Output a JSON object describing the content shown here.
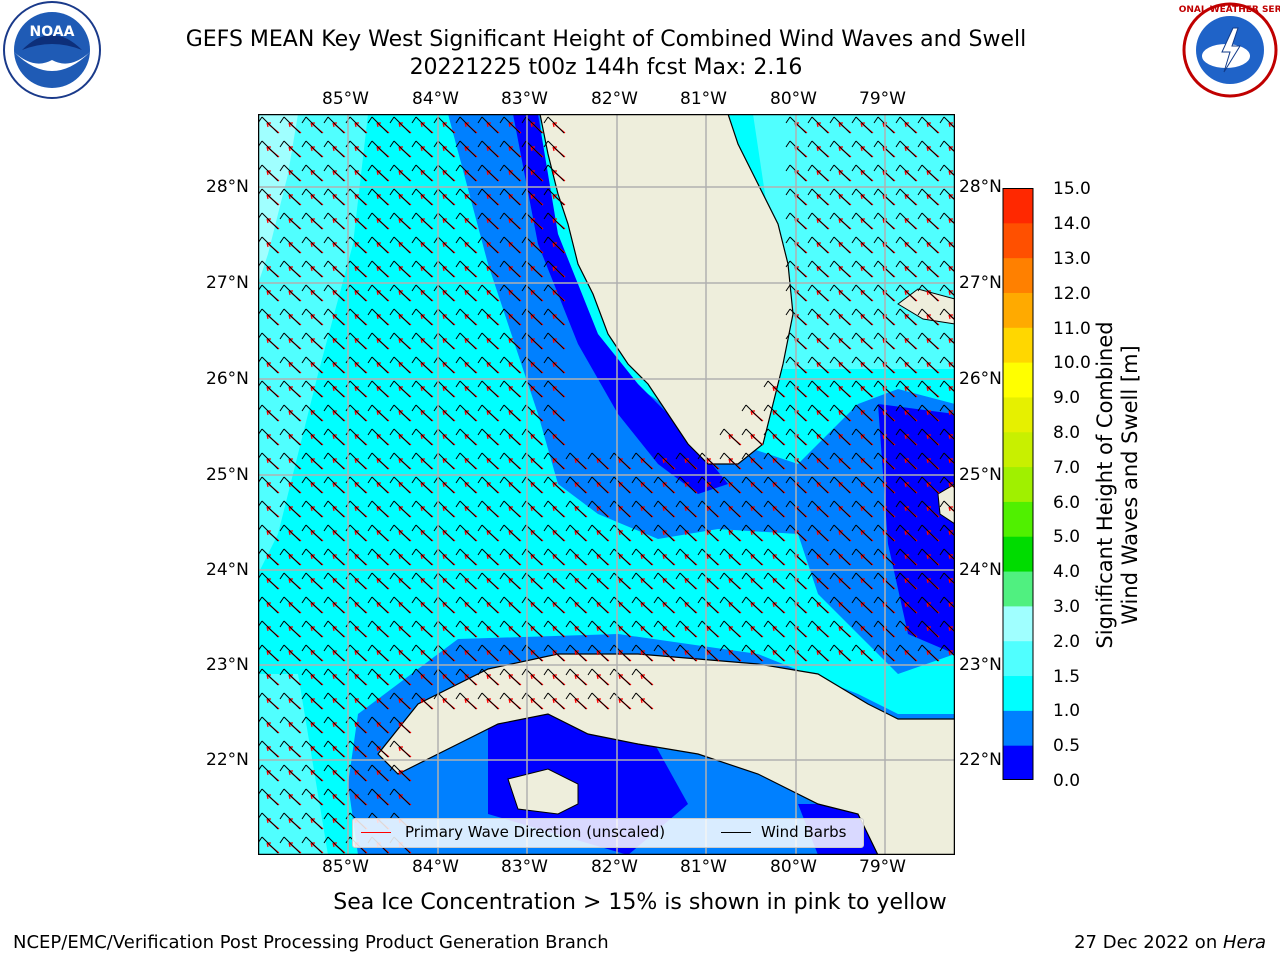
{
  "title_line1": "GEFS MEAN Key West Significant Height of Combined Wind Waves and Swell",
  "title_line2": "20221225 t00z 144h fcst   Max: 2.16",
  "logos": {
    "left": "noaa-logo",
    "right": "nws-logo",
    "left_text": "NOAA",
    "right_text": "NATIONAL WEATHER SERVICE"
  },
  "lon_ticks": [
    "85°W",
    "84°W",
    "83°W",
    "82°W",
    "81°W",
    "80°W",
    "79°W"
  ],
  "lat_ticks": [
    "28°N",
    "27°N",
    "26°N",
    "25°N",
    "24°N",
    "23°N",
    "22°N"
  ],
  "colorbar": {
    "label_line1": "Significant Height of Combined",
    "label_line2": "Wind Waves and Swell [m]",
    "ticks": [
      "15.0",
      "14.0",
      "13.0",
      "12.0",
      "11.0",
      "10.0",
      "9.0",
      "8.0",
      "7.0",
      "6.0",
      "5.0",
      "4.0",
      "3.0",
      "2.0",
      "1.5",
      "1.0",
      "0.5",
      "0.0"
    ],
    "colors": [
      "#0000ff",
      "#0080ff",
      "#00ffff",
      "#50ffff",
      "#a0ffff",
      "#50f080",
      "#00dc00",
      "#50f000",
      "#a0f000",
      "#c8f000",
      "#e6f000",
      "#ffff00",
      "#ffd700",
      "#ffaa00",
      "#ff8000",
      "#ff5000",
      "#ff2800",
      "#ff0000"
    ]
  },
  "legend": {
    "wave_label": "Primary Wave Direction (unscaled)",
    "barb_label": "Wind Barbs",
    "wave_color": "#ff0000",
    "barb_color": "#000000"
  },
  "sea_ice_note": "Sea Ice Concentration > 15% is shown in pink to yellow",
  "footer_left": "NCEP/EMC/Verification Post Processing Product Generation Branch",
  "footer_right_prefix": "27 Dec 2022 on ",
  "footer_right_host": "Hera",
  "colors": {
    "land": "#eeeedc",
    "ocean_light": "#00ffff",
    "ocean_mid": "#50ffff",
    "ocean_pale": "#a0ffff",
    "shallow_blue": "#0080ff",
    "deep_blue": "#0000ff",
    "grid": "#b0b0b0"
  }
}
